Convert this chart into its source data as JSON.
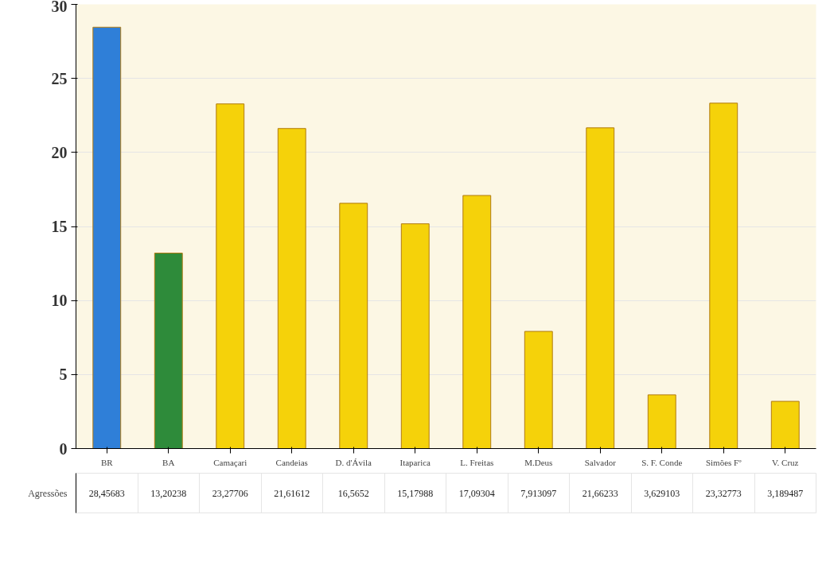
{
  "chart_data": {
    "type": "bar",
    "categories": [
      "BR",
      "BA",
      "Camaçari",
      "Candeias",
      "D. d'Ávila",
      "Itaparica",
      "L. Freitas",
      "M.Deus",
      "Salvador",
      "S. F. Conde",
      "Simões Fº",
      "V. Cruz"
    ],
    "series": [
      {
        "name": "Agressões",
        "colors": [
          "#2f7fd8",
          "#2e8b3a",
          "#f5d20a",
          "#f5d20a",
          "#f5d20a",
          "#f5d20a",
          "#f5d20a",
          "#f5d20a",
          "#f5d20a",
          "#f5d20a",
          "#f5d20a",
          "#f5d20a"
        ],
        "values": [
          28.45683,
          13.20238,
          23.27706,
          21.61612,
          16.5652,
          15.17988,
          17.09304,
          7.913097,
          21.66233,
          3.629103,
          23.32773,
          3.189487
        ],
        "value_labels": [
          "28,45683",
          "13,20238",
          "23,27706",
          "21,61612",
          "16,5652",
          "15,17988",
          "17,09304",
          "7,913097",
          "21,66233",
          "3,629103",
          "23,32773",
          "3,189487"
        ]
      }
    ],
    "ylim": [
      0,
      30
    ],
    "yticks": [
      0,
      5,
      10,
      15,
      20,
      25,
      30
    ],
    "grid": "y",
    "legend": false
  }
}
